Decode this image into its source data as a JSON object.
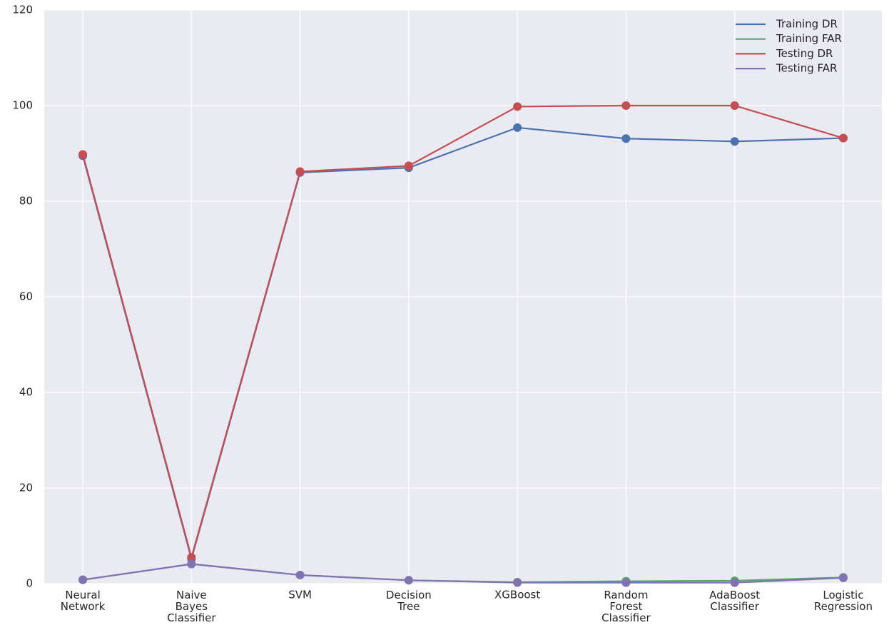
{
  "chart_data": {
    "type": "line",
    "categories": [
      "Neural\nNetwork",
      "Naive\nBayes\nClassifier",
      "SVM",
      "Decision\nTree",
      "XGBoost",
      "Random\nForest\nClassifier",
      "AdaBoost\nClassifier",
      "Logistic\nRegression"
    ],
    "series": [
      {
        "name": "Training DR",
        "color": "#4c72b0",
        "values": [
          89.5,
          5.2,
          86.0,
          87.0,
          95.4,
          93.1,
          92.5,
          93.2
        ]
      },
      {
        "name": "Training FAR",
        "color": "#55a868",
        "values": [
          0.8,
          4.1,
          1.8,
          0.7,
          0.3,
          0.5,
          0.6,
          1.3
        ]
      },
      {
        "name": "Testing DR",
        "color": "#c44e52",
        "values": [
          89.8,
          5.5,
          86.2,
          87.4,
          99.8,
          100,
          100,
          93.2
        ]
      },
      {
        "name": "Testing FAR",
        "color": "#8172b2",
        "values": [
          0.8,
          4.1,
          1.8,
          0.7,
          0.2,
          0.2,
          0.2,
          1.2
        ]
      }
    ],
    "ylim": [
      0,
      120
    ],
    "yticks": [
      0,
      20,
      40,
      60,
      80,
      100,
      120
    ],
    "grid": true,
    "legend": "upper right",
    "markers": true
  }
}
